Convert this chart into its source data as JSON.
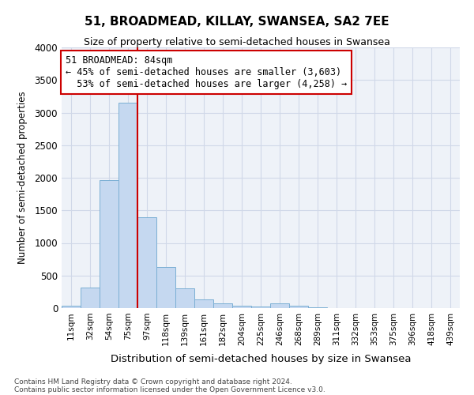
{
  "title": "51, BROADMEAD, KILLAY, SWANSEA, SA2 7EE",
  "subtitle": "Size of property relative to semi-detached houses in Swansea",
  "xlabel": "Distribution of semi-detached houses by size in Swansea",
  "ylabel": "Number of semi-detached properties",
  "footnote1": "Contains HM Land Registry data © Crown copyright and database right 2024.",
  "footnote2": "Contains public sector information licensed under the Open Government Licence v3.0.",
  "annotation_title": "51 BROADMEAD: 84sqm",
  "annotation_line1": "← 45% of semi-detached houses are smaller (3,603)",
  "annotation_line2": "  53% of semi-detached houses are larger (4,258) →",
  "categories": [
    "11sqm",
    "32sqm",
    "54sqm",
    "75sqm",
    "97sqm",
    "118sqm",
    "139sqm",
    "161sqm",
    "182sqm",
    "204sqm",
    "225sqm",
    "246sqm",
    "268sqm",
    "289sqm",
    "311sqm",
    "332sqm",
    "353sqm",
    "375sqm",
    "396sqm",
    "418sqm",
    "439sqm"
  ],
  "values": [
    40,
    320,
    1960,
    3150,
    1390,
    630,
    300,
    130,
    70,
    40,
    20,
    70,
    40,
    10,
    5,
    3,
    2,
    1,
    1,
    1,
    1
  ],
  "bar_color": "#c5d8f0",
  "bar_edge_color": "#7bafd4",
  "marker_line_color": "#cc0000",
  "annotation_box_edge_color": "#cc0000",
  "grid_color": "#d0d8e8",
  "bg_color": "#eef2f8",
  "ylim": [
    0,
    4000
  ],
  "yticks": [
    0,
    500,
    1000,
    1500,
    2000,
    2500,
    3000,
    3500,
    4000
  ],
  "marker_bar_index": 4
}
